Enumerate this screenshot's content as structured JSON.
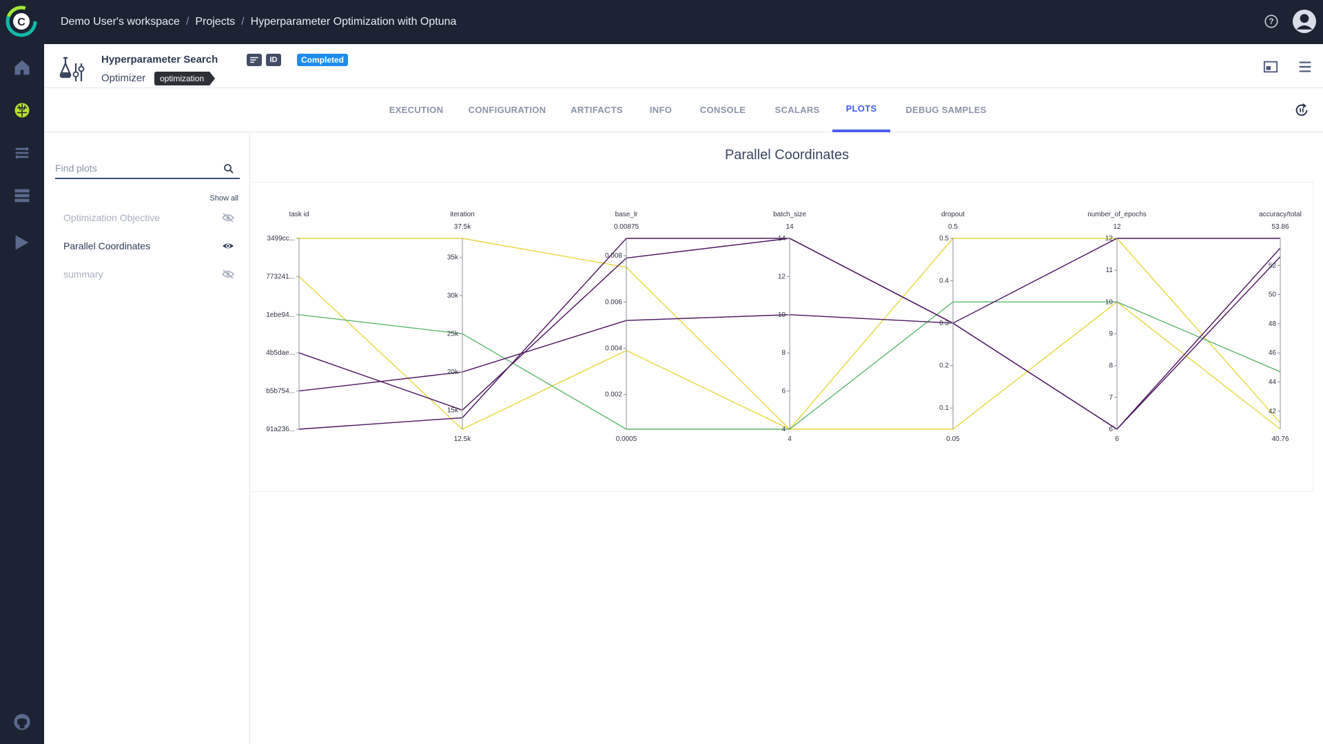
{
  "nav": {
    "items": [
      {
        "icon": "home-icon"
      },
      {
        "icon": "brain-icon"
      },
      {
        "icon": "pipelines-icon"
      },
      {
        "icon": "datasets-icon"
      },
      {
        "icon": "deploy-icon"
      }
    ],
    "github_icon": "github-icon"
  },
  "breadcrumb": {
    "workspace": "Demo User's workspace",
    "projects": "Projects",
    "project": "Hyperparameter Optimization with Optuna"
  },
  "task": {
    "name": "Hyperparameter Search",
    "type": "Optimizer",
    "tag": "optimization",
    "id_label": "ID",
    "status": "Completed"
  },
  "tabs": [
    {
      "label": "EXECUTION"
    },
    {
      "label": "CONFIGURATION"
    },
    {
      "label": "ARTIFACTS"
    },
    {
      "label": "INFO"
    },
    {
      "label": "CONSOLE"
    },
    {
      "label": "SCALARS"
    },
    {
      "label": "PLOTS",
      "active": true
    },
    {
      "label": "DEBUG SAMPLES"
    }
  ],
  "sidebar": {
    "search_placeholder": "Find plots",
    "show_all": "Show all",
    "items": [
      {
        "label": "Optimization Objective",
        "visible": false
      },
      {
        "label": "Parallel Coordinates",
        "visible": true
      },
      {
        "label": "summary",
        "visible": false
      }
    ]
  },
  "plot": {
    "title": "Parallel Coordinates"
  },
  "chart_data": {
    "type": "parallel_coordinates",
    "dimensions": [
      {
        "label": "task id",
        "categorical": true,
        "ticks": [
          "91a236...",
          "b5b754...",
          "4b5dae...",
          "1ebe94...",
          "773241...",
          "3499cc..."
        ]
      },
      {
        "label": "iteration",
        "range": [
          12500,
          37500
        ],
        "min_label": "12.5k",
        "max_label": "37.5k",
        "ticks": [
          [
            15000,
            "15k"
          ],
          [
            20000,
            "20k"
          ],
          [
            25000,
            "25k"
          ],
          [
            30000,
            "30k"
          ],
          [
            35000,
            "35k"
          ]
        ]
      },
      {
        "label": "base_lr",
        "range": [
          0.0005,
          0.00875
        ],
        "min_label": "0.0005",
        "max_label": "0.00875",
        "ticks": [
          [
            0.002,
            "0.002"
          ],
          [
            0.004,
            "0.004"
          ],
          [
            0.006,
            "0.006"
          ],
          [
            0.008,
            "0.008"
          ]
        ]
      },
      {
        "label": "batch_size",
        "range": [
          4,
          14
        ],
        "min_label": "4",
        "max_label": "14",
        "ticks": [
          [
            4,
            "4"
          ],
          [
            6,
            "6"
          ],
          [
            8,
            "8"
          ],
          [
            10,
            "10"
          ],
          [
            12,
            "12"
          ],
          [
            14,
            "14"
          ]
        ]
      },
      {
        "label": "dropout",
        "range": [
          0.05,
          0.5
        ],
        "min_label": "0.05",
        "max_label": "0.5",
        "ticks": [
          [
            0.1,
            "0.1"
          ],
          [
            0.2,
            "0.2"
          ],
          [
            0.3,
            "0.3"
          ],
          [
            0.4,
            "0.4"
          ],
          [
            0.5,
            "0.5"
          ]
        ]
      },
      {
        "label": "number_of_epochs",
        "range": [
          6,
          12
        ],
        "min_label": "6",
        "max_label": "12",
        "ticks": [
          [
            6,
            "6"
          ],
          [
            7,
            "7"
          ],
          [
            8,
            "8"
          ],
          [
            9,
            "9"
          ],
          [
            10,
            "10"
          ],
          [
            11,
            "11"
          ],
          [
            12,
            "12"
          ]
        ]
      },
      {
        "label": "accuracy/total",
        "range": [
          40.76,
          53.86
        ],
        "min_label": "40.76",
        "max_label": "53.86",
        "ticks": [
          [
            42,
            "42"
          ],
          [
            44,
            "44"
          ],
          [
            46,
            "46"
          ],
          [
            48,
            "48"
          ],
          [
            50,
            "50"
          ],
          [
            52,
            "52"
          ]
        ]
      }
    ],
    "lines": [
      {
        "color": "#e6d63f",
        "values": [
          5,
          37500,
          0.0075,
          4,
          0.5,
          12,
          41.2
        ]
      },
      {
        "color": "#e6d63f",
        "values": [
          4,
          12500,
          0.0039,
          4,
          0.05,
          10,
          40.76
        ]
      },
      {
        "color": "#5cb86b",
        "values": [
          3,
          25000,
          0.0005,
          4,
          0.35,
          10,
          44.7
        ]
      },
      {
        "color": "#4b145e",
        "values": [
          2,
          15000,
          0.0079,
          14,
          0.3,
          6,
          53.2
        ]
      },
      {
        "color": "#4b145e",
        "values": [
          1,
          20000,
          0.0052,
          10,
          0.3,
          12,
          53.86
        ]
      },
      {
        "color": "#4b145e",
        "values": [
          0,
          14000,
          0.00875,
          14,
          0.3,
          6,
          52.6
        ]
      }
    ]
  }
}
